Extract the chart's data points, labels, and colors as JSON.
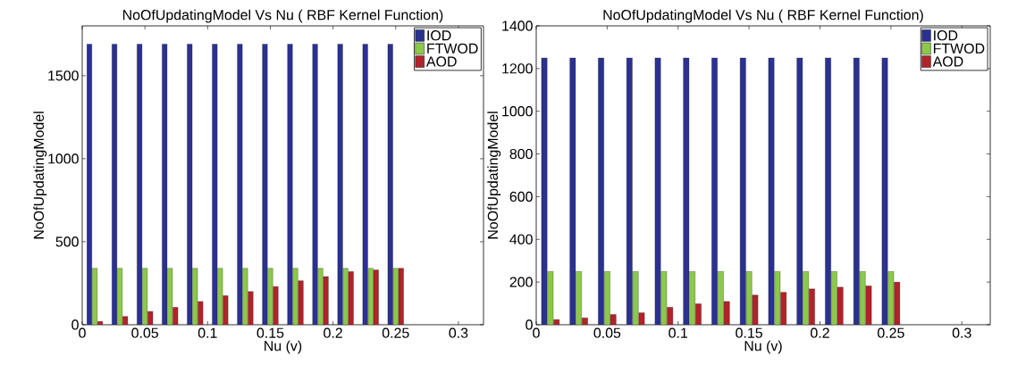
{
  "chart_data": [
    {
      "type": "bar",
      "title": "NoOfUpdatingModel Vs Nu ( RBF Kernel Function)",
      "xlabel": "Nu (v)",
      "ylabel": "NoOfUpdatingModel",
      "x": [
        0.01,
        0.03,
        0.05,
        0.07,
        0.09,
        0.11,
        0.13,
        0.15,
        0.17,
        0.19,
        0.21,
        0.23,
        0.25
      ],
      "series": [
        {
          "name": "IOD",
          "color": "#2b3191",
          "values": [
            1690,
            1690,
            1690,
            1690,
            1690,
            1690,
            1690,
            1690,
            1690,
            1690,
            1690,
            1690,
            1690
          ]
        },
        {
          "name": "FTWOD",
          "color": "#8cc84b",
          "values": [
            340,
            340,
            340,
            340,
            340,
            340,
            340,
            340,
            340,
            340,
            340,
            340,
            340
          ]
        },
        {
          "name": "AOD",
          "color": "#b1232b",
          "values": [
            20,
            50,
            80,
            105,
            140,
            175,
            200,
            230,
            265,
            290,
            320,
            330,
            340
          ]
        }
      ],
      "xlim": [
        0,
        0.32
      ],
      "xticks": [
        0,
        0.05,
        0.1,
        0.15,
        0.2,
        0.25,
        0.3
      ],
      "ylim": [
        0,
        1800
      ],
      "yticks": [
        0,
        500,
        1000,
        1500
      ],
      "grid": false,
      "legend": "top right"
    },
    {
      "type": "bar",
      "title": "NoOfUpdatingModel Vs Nu ( RBF Kernel Function)",
      "xlabel": "Nu (v)",
      "ylabel": "NoOfUpdatingModel",
      "x": [
        0.01,
        0.03,
        0.05,
        0.07,
        0.09,
        0.11,
        0.13,
        0.15,
        0.17,
        0.19,
        0.21,
        0.23,
        0.25
      ],
      "series": [
        {
          "name": "IOD",
          "color": "#2b3191",
          "values": [
            1250,
            1250,
            1250,
            1250,
            1250,
            1250,
            1250,
            1250,
            1250,
            1250,
            1250,
            1250,
            1250
          ]
        },
        {
          "name": "FTWOD",
          "color": "#8cc84b",
          "values": [
            250,
            250,
            250,
            250,
            250,
            250,
            250,
            250,
            250,
            250,
            250,
            250,
            250
          ]
        },
        {
          "name": "AOD",
          "color": "#b1232b",
          "values": [
            24,
            32,
            48,
            56,
            82,
            98,
            109,
            139,
            152,
            168,
            176,
            182,
            200
          ]
        }
      ],
      "xlim": [
        0,
        0.32
      ],
      "xticks": [
        0,
        0.05,
        0.1,
        0.15,
        0.2,
        0.25,
        0.3
      ],
      "ylim": [
        0,
        1400
      ],
      "yticks": [
        0,
        200,
        400,
        600,
        800,
        1000,
        1200,
        1400
      ],
      "grid": false,
      "legend": "top right"
    }
  ]
}
